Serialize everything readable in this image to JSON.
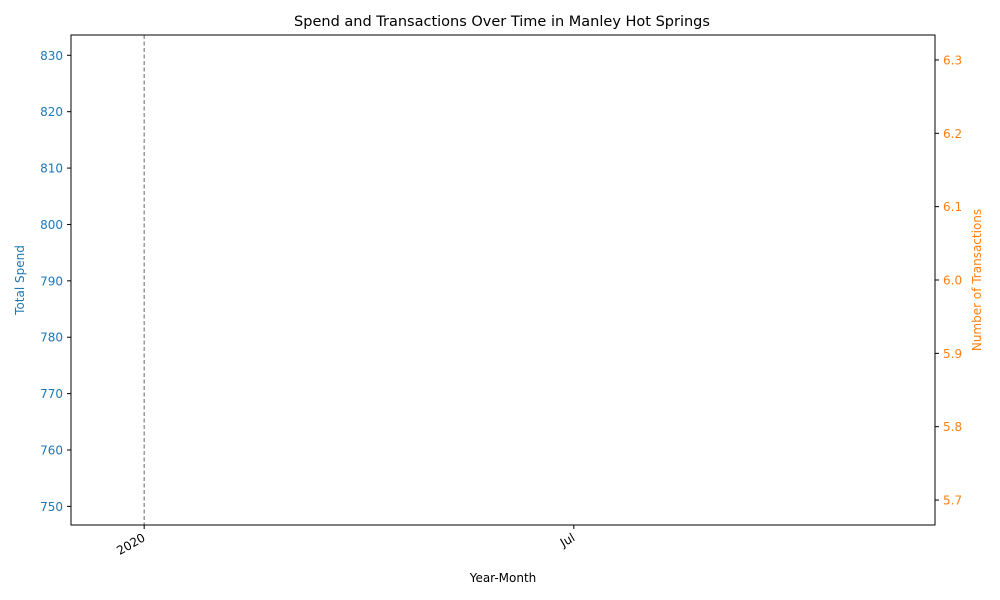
{
  "chart_data": {
    "type": "line",
    "title": "Spend and Transactions Over Time in Manley Hot Springs",
    "xlabel": "Year-Month",
    "x_ticks": [
      "2020",
      "Jul"
    ],
    "x_range": [
      "2019-12-01",
      "2020-12-01"
    ],
    "vline": "2020-01-01",
    "left_axis": {
      "label": "Total Spend",
      "color": "#1f77b4",
      "ylim": [
        746.7,
        833.6
      ],
      "ticks": [
        750,
        760,
        770,
        780,
        790,
        800,
        810,
        820,
        830
      ]
    },
    "right_axis": {
      "label": "Number of Transactions",
      "color": "#ff7f0e",
      "ylim": [
        5.666,
        6.334
      ],
      "ticks": [
        "5.7",
        "5.8",
        "5.9",
        "6.0",
        "6.1",
        "6.2",
        "6.3"
      ]
    },
    "series": [
      {
        "axis": "left",
        "color": "#1f77b4",
        "points": []
      },
      {
        "axis": "right",
        "color": "#ff7f0e",
        "points": []
      }
    ],
    "grid": false
  }
}
